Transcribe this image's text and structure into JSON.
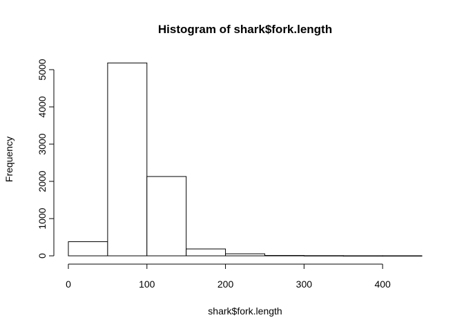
{
  "chart_data": {
    "type": "bar",
    "title": "Histogram of shark$fork.length",
    "xlabel": "shark$fork.length",
    "ylabel": "Frequency",
    "bins": [
      {
        "from": 0,
        "to": 50,
        "count": 380
      },
      {
        "from": 50,
        "to": 100,
        "count": 5180
      },
      {
        "from": 100,
        "to": 150,
        "count": 2130
      },
      {
        "from": 150,
        "to": 200,
        "count": 185
      },
      {
        "from": 200,
        "to": 250,
        "count": 55
      },
      {
        "from": 250,
        "to": 300,
        "count": 10
      },
      {
        "from": 300,
        "to": 350,
        "count": 5
      },
      {
        "from": 350,
        "to": 400,
        "count": 2
      },
      {
        "from": 400,
        "to": 450,
        "count": 2
      }
    ],
    "xticks": [
      0,
      100,
      200,
      300,
      400
    ],
    "yticks": [
      0,
      1000,
      2000,
      3000,
      4000,
      5000
    ],
    "xlim": [
      0,
      450
    ],
    "ylim": [
      0,
      5180
    ],
    "bar_fill": "#ffffff",
    "bar_stroke": "#000000",
    "grid": false
  }
}
